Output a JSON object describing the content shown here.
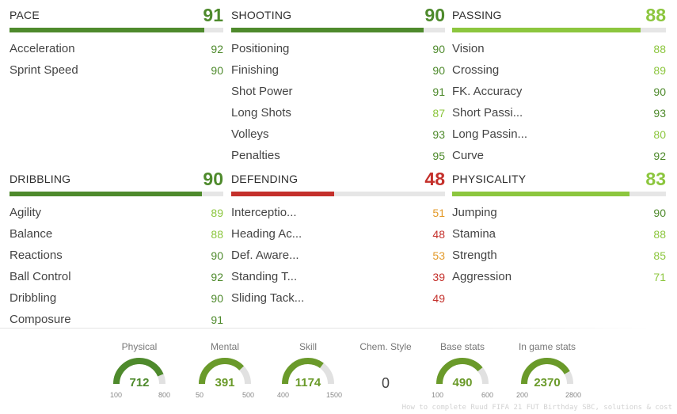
{
  "colors": {
    "dark_green": "#4e8a2c",
    "light_green": "#8cc63e",
    "mid_green": "#6a9a2a",
    "orange": "#e39a2a",
    "red": "#c4302b",
    "bar_bg": "#e6e6e6"
  },
  "categories": [
    {
      "name": "PACE",
      "value": "91",
      "color": "#4e8a2c",
      "fill": 0.91,
      "stats": [
        {
          "label": "Acceleration",
          "value": "92",
          "color": "#4e8a2c"
        },
        {
          "label": "Sprint Speed",
          "value": "90",
          "color": "#4e8a2c"
        }
      ]
    },
    {
      "name": "SHOOTING",
      "value": "90",
      "color": "#4e8a2c",
      "fill": 0.9,
      "stats": [
        {
          "label": "Positioning",
          "value": "90",
          "color": "#4e8a2c"
        },
        {
          "label": "Finishing",
          "value": "90",
          "color": "#4e8a2c"
        },
        {
          "label": "Shot Power",
          "value": "91",
          "color": "#4e8a2c"
        },
        {
          "label": "Long Shots",
          "value": "87",
          "color": "#8cc63e"
        },
        {
          "label": "Volleys",
          "value": "93",
          "color": "#4e8a2c"
        },
        {
          "label": "Penalties",
          "value": "95",
          "color": "#4e8a2c"
        }
      ]
    },
    {
      "name": "PASSING",
      "value": "88",
      "color": "#8cc63e",
      "fill": 0.88,
      "stats": [
        {
          "label": "Vision",
          "value": "88",
          "color": "#8cc63e"
        },
        {
          "label": "Crossing",
          "value": "89",
          "color": "#8cc63e"
        },
        {
          "label": "FK. Accuracy",
          "value": "90",
          "color": "#4e8a2c"
        },
        {
          "label": "Short Passi...",
          "value": "93",
          "color": "#4e8a2c"
        },
        {
          "label": "Long Passin...",
          "value": "80",
          "color": "#8cc63e"
        },
        {
          "label": "Curve",
          "value": "92",
          "color": "#4e8a2c"
        }
      ]
    },
    {
      "name": "DRIBBLING",
      "value": "90",
      "color": "#4e8a2c",
      "fill": 0.9,
      "stats": [
        {
          "label": "Agility",
          "value": "89",
          "color": "#8cc63e"
        },
        {
          "label": "Balance",
          "value": "88",
          "color": "#8cc63e"
        },
        {
          "label": "Reactions",
          "value": "90",
          "color": "#4e8a2c"
        },
        {
          "label": "Ball Control",
          "value": "92",
          "color": "#4e8a2c"
        },
        {
          "label": "Dribbling",
          "value": "90",
          "color": "#4e8a2c"
        },
        {
          "label": "Composure",
          "value": "91",
          "color": "#4e8a2c"
        }
      ]
    },
    {
      "name": "DEFENDING",
      "value": "48",
      "color": "#c4302b",
      "fill": 0.48,
      "stats": [
        {
          "label": "Interceptio...",
          "value": "51",
          "color": "#e39a2a"
        },
        {
          "label": "Heading Ac...",
          "value": "48",
          "color": "#c4302b"
        },
        {
          "label": "Def. Aware...",
          "value": "53",
          "color": "#e39a2a"
        },
        {
          "label": "Standing T...",
          "value": "39",
          "color": "#c4302b"
        },
        {
          "label": "Sliding Tack...",
          "value": "49",
          "color": "#c4302b"
        }
      ]
    },
    {
      "name": "PHYSICALITY",
      "value": "83",
      "color": "#8cc63e",
      "fill": 0.83,
      "stats": [
        {
          "label": "Jumping",
          "value": "90",
          "color": "#4e8a2c"
        },
        {
          "label": "Stamina",
          "value": "88",
          "color": "#8cc63e"
        },
        {
          "label": "Strength",
          "value": "85",
          "color": "#8cc63e"
        },
        {
          "label": "Aggression",
          "value": "71",
          "color": "#8cc63e"
        }
      ]
    }
  ],
  "summary": {
    "physical": {
      "title": "Physical",
      "value": "712",
      "min": "100",
      "max": "800",
      "fill": 0.874,
      "color": "#4e8a2c"
    },
    "mental": {
      "title": "Mental",
      "value": "391",
      "min": "50",
      "max": "500",
      "fill": 0.758,
      "color": "#6a9a2a"
    },
    "skill": {
      "title": "Skill",
      "value": "1174",
      "min": "400",
      "max": "1500",
      "fill": 0.704,
      "color": "#6a9a2a"
    },
    "chem": {
      "title": "Chem. Style",
      "value": "0"
    },
    "base": {
      "title": "Base stats",
      "value": "490",
      "min": "100",
      "max": "600",
      "fill": 0.78,
      "color": "#6a9a2a"
    },
    "ingame": {
      "title": "In game stats",
      "value": "2370",
      "min": "200",
      "max": "2800",
      "fill": 0.835,
      "color": "#6a9a2a"
    }
  },
  "watermark": "How to complete Ruud FIFA 21 FUT Birthday SBC, solutions & cost"
}
